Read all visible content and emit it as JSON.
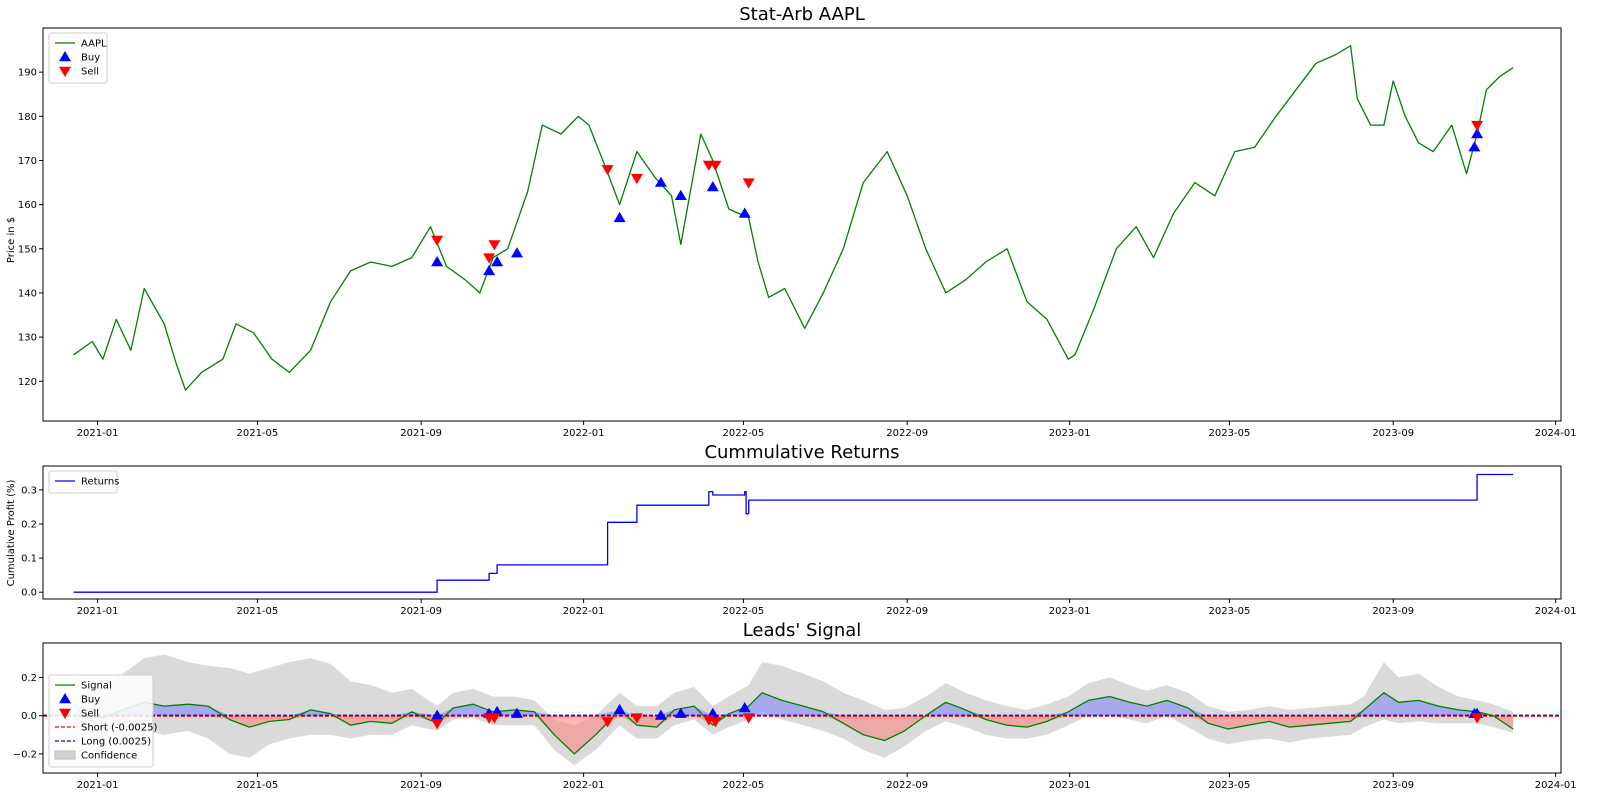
{
  "chart_data": [
    {
      "type": "line",
      "title": "Stat-Arb AAPL",
      "xlabel": "",
      "ylabel": "Price in $",
      "x_ticks": [
        "2021-01",
        "2021-05",
        "2021-09",
        "2022-01",
        "2022-05",
        "2022-09",
        "2023-01",
        "2023-05",
        "2023-09",
        "2024-01"
      ],
      "y_ticks": [
        "120",
        "130",
        "140",
        "150",
        "160",
        "170",
        "180",
        "190"
      ],
      "ylim": [
        111,
        200
      ],
      "xlim": [
        "2020-11-21",
        "2024-01-05"
      ],
      "legend": [
        {
          "label": "AAPL",
          "marker": "line",
          "color": "#008000"
        },
        {
          "label": "Buy",
          "marker": "triangle-up",
          "color": "#0000ff"
        },
        {
          "label": "Sell",
          "marker": "triangle-down",
          "color": "#ff0000"
        }
      ],
      "series": [
        {
          "name": "AAPL",
          "color": "#008000",
          "x": [
            "2020-12-14",
            "2020-12-28",
            "2021-01-05",
            "2021-01-15",
            "2021-01-26",
            "2021-02-05",
            "2021-02-20",
            "2021-03-01",
            "2021-03-08",
            "2021-03-20",
            "2021-04-05",
            "2021-04-15",
            "2021-04-28",
            "2021-05-12",
            "2021-05-25",
            "2021-06-10",
            "2021-06-25",
            "2021-07-10",
            "2021-07-25",
            "2021-08-10",
            "2021-08-25",
            "2021-09-08",
            "2021-09-20",
            "2021-10-04",
            "2021-10-15",
            "2021-10-25",
            "2021-11-05",
            "2021-11-20",
            "2021-12-01",
            "2021-12-15",
            "2021-12-28",
            "2022-01-05",
            "2022-01-18",
            "2022-01-28",
            "2022-02-10",
            "2022-02-24",
            "2022-03-08",
            "2022-03-15",
            "2022-03-30",
            "2022-04-08",
            "2022-04-20",
            "2022-05-05",
            "2022-05-12",
            "2022-05-20",
            "2022-06-01",
            "2022-06-16",
            "2022-06-30",
            "2022-07-15",
            "2022-07-30",
            "2022-08-17",
            "2022-09-01",
            "2022-09-15",
            "2022-09-30",
            "2022-10-15",
            "2022-10-30",
            "2022-11-15",
            "2022-11-30",
            "2022-12-15",
            "2022-12-31",
            "2023-01-05",
            "2023-01-20",
            "2023-02-05",
            "2023-02-20",
            "2023-03-05",
            "2023-03-20",
            "2023-04-05",
            "2023-04-20",
            "2023-05-05",
            "2023-05-20",
            "2023-06-05",
            "2023-06-20",
            "2023-07-05",
            "2023-07-20",
            "2023-07-31",
            "2023-08-05",
            "2023-08-15",
            "2023-08-25",
            "2023-09-01",
            "2023-09-10",
            "2023-09-20",
            "2023-10-01",
            "2023-10-15",
            "2023-10-26",
            "2023-11-03",
            "2023-11-10",
            "2023-11-20",
            "2023-11-30"
          ],
          "values": [
            126,
            129,
            125,
            134,
            127,
            141,
            133,
            124,
            118,
            122,
            125,
            133,
            131,
            125,
            122,
            127,
            138,
            145,
            147,
            146,
            148,
            155,
            146,
            143,
            140,
            148,
            150,
            163,
            178,
            176,
            180,
            178,
            168,
            160,
            172,
            166,
            162,
            151,
            176,
            170,
            159,
            157,
            147,
            139,
            141,
            132,
            140,
            150,
            165,
            172,
            162,
            150,
            140,
            143,
            147,
            150,
            138,
            134,
            125,
            126,
            137,
            150,
            155,
            148,
            158,
            165,
            162,
            172,
            173,
            180,
            186,
            192,
            194,
            196,
            184,
            178,
            178,
            188,
            180,
            174,
            172,
            178,
            167,
            176,
            186,
            189,
            191
          ]
        }
      ],
      "buy": {
        "x": [
          "2021-09-13",
          "2021-10-22",
          "2021-10-28",
          "2021-11-12",
          "2022-01-28",
          "2022-02-28",
          "2022-03-15",
          "2022-04-08",
          "2022-05-02",
          "2023-11-01",
          "2023-11-03"
        ],
        "values": [
          147,
          145,
          147,
          149,
          157,
          165,
          162,
          164,
          158,
          173,
          176
        ]
      },
      "sell": {
        "x": [
          "2021-09-13",
          "2021-10-22",
          "2021-10-26",
          "2022-01-19",
          "2022-02-10",
          "2022-04-05",
          "2022-04-10",
          "2022-05-05",
          "2023-11-03"
        ],
        "values": [
          152,
          148,
          151,
          168,
          166,
          169,
          169,
          165,
          178
        ]
      }
    },
    {
      "type": "line",
      "title": "Cummulative Returns",
      "xlabel": "",
      "ylabel": "Cumulative Profit (%)",
      "x_ticks": [
        "2021-01",
        "2021-05",
        "2021-09",
        "2022-01",
        "2022-05",
        "2022-09",
        "2023-01",
        "2023-05",
        "2023-09",
        "2024-01"
      ],
      "y_ticks": [
        "0.0",
        "0.1",
        "0.2",
        "0.3"
      ],
      "ylim": [
        -0.02,
        0.37
      ],
      "xlim": [
        "2020-11-21",
        "2024-01-05"
      ],
      "legend": [
        {
          "label": "Returns",
          "marker": "line",
          "color": "#0000ff"
        }
      ],
      "series": [
        {
          "name": "Returns",
          "color": "#0000ff",
          "step": true,
          "x": [
            "2020-12-14",
            "2021-09-13",
            "2021-10-22",
            "2021-10-28",
            "2022-01-19",
            "2022-02-10",
            "2022-04-05",
            "2022-04-08",
            "2022-05-02",
            "2022-05-03",
            "2022-05-05",
            "2023-11-03",
            "2023-11-30"
          ],
          "values": [
            0.0,
            0.035,
            0.055,
            0.08,
            0.205,
            0.255,
            0.295,
            0.285,
            0.295,
            0.23,
            0.27,
            0.345,
            0.345
          ]
        }
      ]
    },
    {
      "type": "line",
      "title": "Leads' Signal",
      "xlabel": "",
      "ylabel": "",
      "x_ticks": [
        "2021-01",
        "2021-05",
        "2021-09",
        "2022-01",
        "2022-05",
        "2022-09",
        "2023-01",
        "2023-05",
        "2023-09",
        "2024-01"
      ],
      "y_ticks": [
        "−0.2",
        "0.0",
        "0.2"
      ],
      "ylim": [
        -0.3,
        0.38
      ],
      "xlim": [
        "2020-11-21",
        "2024-01-05"
      ],
      "thresholds": {
        "short": -0.0025,
        "long": 0.0025
      },
      "legend": [
        {
          "label": "Signal",
          "marker": "line",
          "color": "#008000"
        },
        {
          "label": "Buy",
          "marker": "triangle-up",
          "color": "#0000ff"
        },
        {
          "label": "Sell",
          "marker": "triangle-down",
          "color": "#ff0000"
        },
        {
          "label": "Short (-0.0025)",
          "marker": "dashed",
          "color": "#ff0000"
        },
        {
          "label": "Long (0.0025)",
          "marker": "dashed",
          "color": "#0000ff"
        },
        {
          "label": "Confidence",
          "marker": "patch",
          "color": "#d3d3d3"
        }
      ],
      "series": [
        {
          "name": "Signal",
          "color": "#008000",
          "x": [
            "2020-12-14",
            "2021-01-05",
            "2021-01-20",
            "2021-02-05",
            "2021-02-20",
            "2021-03-10",
            "2021-03-25",
            "2021-04-10",
            "2021-04-25",
            "2021-05-10",
            "2021-05-25",
            "2021-06-10",
            "2021-06-25",
            "2021-07-10",
            "2021-07-25",
            "2021-08-10",
            "2021-08-25",
            "2021-09-13",
            "2021-09-25",
            "2021-10-10",
            "2021-10-25",
            "2021-11-10",
            "2021-11-25",
            "2021-12-10",
            "2021-12-25",
            "2022-01-10",
            "2022-01-28",
            "2022-02-10",
            "2022-02-25",
            "2022-03-10",
            "2022-03-25",
            "2022-04-08",
            "2022-04-20",
            "2022-05-05",
            "2022-05-15",
            "2022-05-30",
            "2022-06-15",
            "2022-06-30",
            "2022-07-15",
            "2022-07-30",
            "2022-08-15",
            "2022-08-30",
            "2022-09-15",
            "2022-09-30",
            "2022-10-15",
            "2022-10-30",
            "2022-11-15",
            "2022-11-30",
            "2022-12-15",
            "2022-12-31",
            "2023-01-15",
            "2023-01-31",
            "2023-02-15",
            "2023-02-28",
            "2023-03-15",
            "2023-03-31",
            "2023-04-15",
            "2023-04-30",
            "2023-05-15",
            "2023-05-31",
            "2023-06-15",
            "2023-06-30",
            "2023-07-15",
            "2023-07-31",
            "2023-08-10",
            "2023-08-25",
            "2023-09-05",
            "2023-09-20",
            "2023-10-05",
            "2023-10-20",
            "2023-11-03",
            "2023-11-15",
            "2023-11-30"
          ],
          "values": [
            0.0,
            -0.01,
            0.03,
            0.07,
            0.05,
            0.06,
            0.05,
            -0.02,
            -0.06,
            -0.03,
            -0.02,
            0.03,
            0.01,
            -0.05,
            -0.03,
            -0.04,
            0.02,
            -0.04,
            0.04,
            0.06,
            0.02,
            0.03,
            0.02,
            -0.1,
            -0.2,
            -0.1,
            0.03,
            -0.05,
            -0.06,
            0.03,
            0.05,
            -0.05,
            0.01,
            0.05,
            0.12,
            0.08,
            0.05,
            0.02,
            -0.04,
            -0.1,
            -0.13,
            -0.08,
            0.0,
            0.07,
            0.03,
            -0.02,
            -0.05,
            -0.06,
            -0.03,
            0.02,
            0.08,
            0.1,
            0.07,
            0.05,
            0.08,
            0.04,
            -0.04,
            -0.07,
            -0.05,
            -0.03,
            -0.06,
            -0.05,
            -0.04,
            -0.03,
            0.03,
            0.12,
            0.07,
            0.08,
            0.05,
            0.03,
            0.02,
            0.0,
            -0.07
          ]
        },
        {
          "name": "Confidence",
          "color": "#d3d3d3",
          "x": [
            "2020-12-14",
            "2021-01-05",
            "2021-01-20",
            "2021-02-05",
            "2021-02-20",
            "2021-03-10",
            "2021-03-25",
            "2021-04-10",
            "2021-04-25",
            "2021-05-10",
            "2021-05-25",
            "2021-06-10",
            "2021-06-25",
            "2021-07-10",
            "2021-07-25",
            "2021-08-10",
            "2021-08-25",
            "2021-09-13",
            "2021-09-25",
            "2021-10-10",
            "2021-10-25",
            "2021-11-10",
            "2021-11-25",
            "2021-12-10",
            "2021-12-25",
            "2022-01-10",
            "2022-01-28",
            "2022-02-10",
            "2022-02-25",
            "2022-03-10",
            "2022-03-25",
            "2022-04-08",
            "2022-04-20",
            "2022-05-05",
            "2022-05-15",
            "2022-05-30",
            "2022-06-15",
            "2022-06-30",
            "2022-07-15",
            "2022-07-30",
            "2022-08-15",
            "2022-08-30",
            "2022-09-15",
            "2022-09-30",
            "2022-10-15",
            "2022-10-30",
            "2022-11-15",
            "2022-11-30",
            "2022-12-15",
            "2022-12-31",
            "2023-01-15",
            "2023-01-31",
            "2023-02-15",
            "2023-02-28",
            "2023-03-15",
            "2023-03-31",
            "2023-04-15",
            "2023-04-30",
            "2023-05-15",
            "2023-05-31",
            "2023-06-15",
            "2023-06-30",
            "2023-07-15",
            "2023-07-31",
            "2023-08-10",
            "2023-08-25",
            "2023-09-05",
            "2023-09-20",
            "2023-10-05",
            "2023-10-20",
            "2023-11-03",
            "2023-11-15",
            "2023-11-30"
          ],
          "upper": [
            0.1,
            0.15,
            0.22,
            0.3,
            0.32,
            0.28,
            0.26,
            0.25,
            0.22,
            0.25,
            0.28,
            0.3,
            0.27,
            0.18,
            0.16,
            0.12,
            0.14,
            0.05,
            0.12,
            0.14,
            0.1,
            0.1,
            0.08,
            -0.02,
            -0.05,
            0.0,
            0.12,
            0.05,
            0.05,
            0.12,
            0.15,
            0.05,
            0.1,
            0.16,
            0.28,
            0.26,
            0.22,
            0.18,
            0.12,
            0.08,
            0.03,
            0.04,
            0.1,
            0.17,
            0.12,
            0.08,
            0.05,
            0.03,
            0.06,
            0.1,
            0.17,
            0.2,
            0.16,
            0.13,
            0.16,
            0.12,
            0.05,
            0.02,
            0.03,
            0.05,
            0.03,
            0.04,
            0.05,
            0.06,
            0.1,
            0.28,
            0.2,
            0.22,
            0.15,
            0.1,
            0.08,
            0.06,
            0.02
          ],
          "lower": [
            -0.05,
            -0.12,
            -0.1,
            -0.08,
            -0.1,
            -0.08,
            -0.12,
            -0.2,
            -0.22,
            -0.15,
            -0.12,
            -0.1,
            -0.1,
            -0.12,
            -0.1,
            -0.1,
            -0.05,
            -0.08,
            -0.02,
            -0.01,
            -0.05,
            -0.05,
            -0.05,
            -0.18,
            -0.26,
            -0.18,
            -0.05,
            -0.12,
            -0.12,
            -0.05,
            -0.02,
            -0.1,
            -0.06,
            -0.02,
            0.02,
            -0.02,
            -0.05,
            -0.08,
            -0.12,
            -0.18,
            -0.22,
            -0.16,
            -0.08,
            -0.03,
            -0.06,
            -0.1,
            -0.12,
            -0.12,
            -0.1,
            -0.05,
            0.0,
            0.0,
            -0.02,
            -0.04,
            0.0,
            -0.06,
            -0.12,
            -0.15,
            -0.13,
            -0.12,
            -0.14,
            -0.12,
            -0.11,
            -0.1,
            -0.06,
            -0.02,
            -0.04,
            -0.03,
            -0.04,
            -0.04,
            -0.04,
            -0.06,
            -0.09
          ]
        }
      ],
      "buy": {
        "x": [
          "2021-09-13",
          "2021-10-22",
          "2021-10-28",
          "2021-11-12",
          "2022-01-28",
          "2022-02-28",
          "2022-03-15",
          "2022-04-08",
          "2022-05-02",
          "2023-11-01",
          "2023-11-03"
        ],
        "values": [
          0.0,
          0.01,
          0.02,
          0.01,
          0.03,
          0.0,
          0.01,
          0.01,
          0.04,
          0.01,
          0.01
        ]
      },
      "sell": {
        "x": [
          "2021-09-13",
          "2021-10-22",
          "2021-10-26",
          "2022-01-19",
          "2022-02-10",
          "2022-04-05",
          "2022-04-10",
          "2022-05-05",
          "2023-11-03"
        ],
        "values": [
          -0.04,
          -0.01,
          -0.01,
          -0.03,
          -0.01,
          -0.02,
          -0.03,
          -0.01,
          -0.01
        ]
      }
    }
  ]
}
